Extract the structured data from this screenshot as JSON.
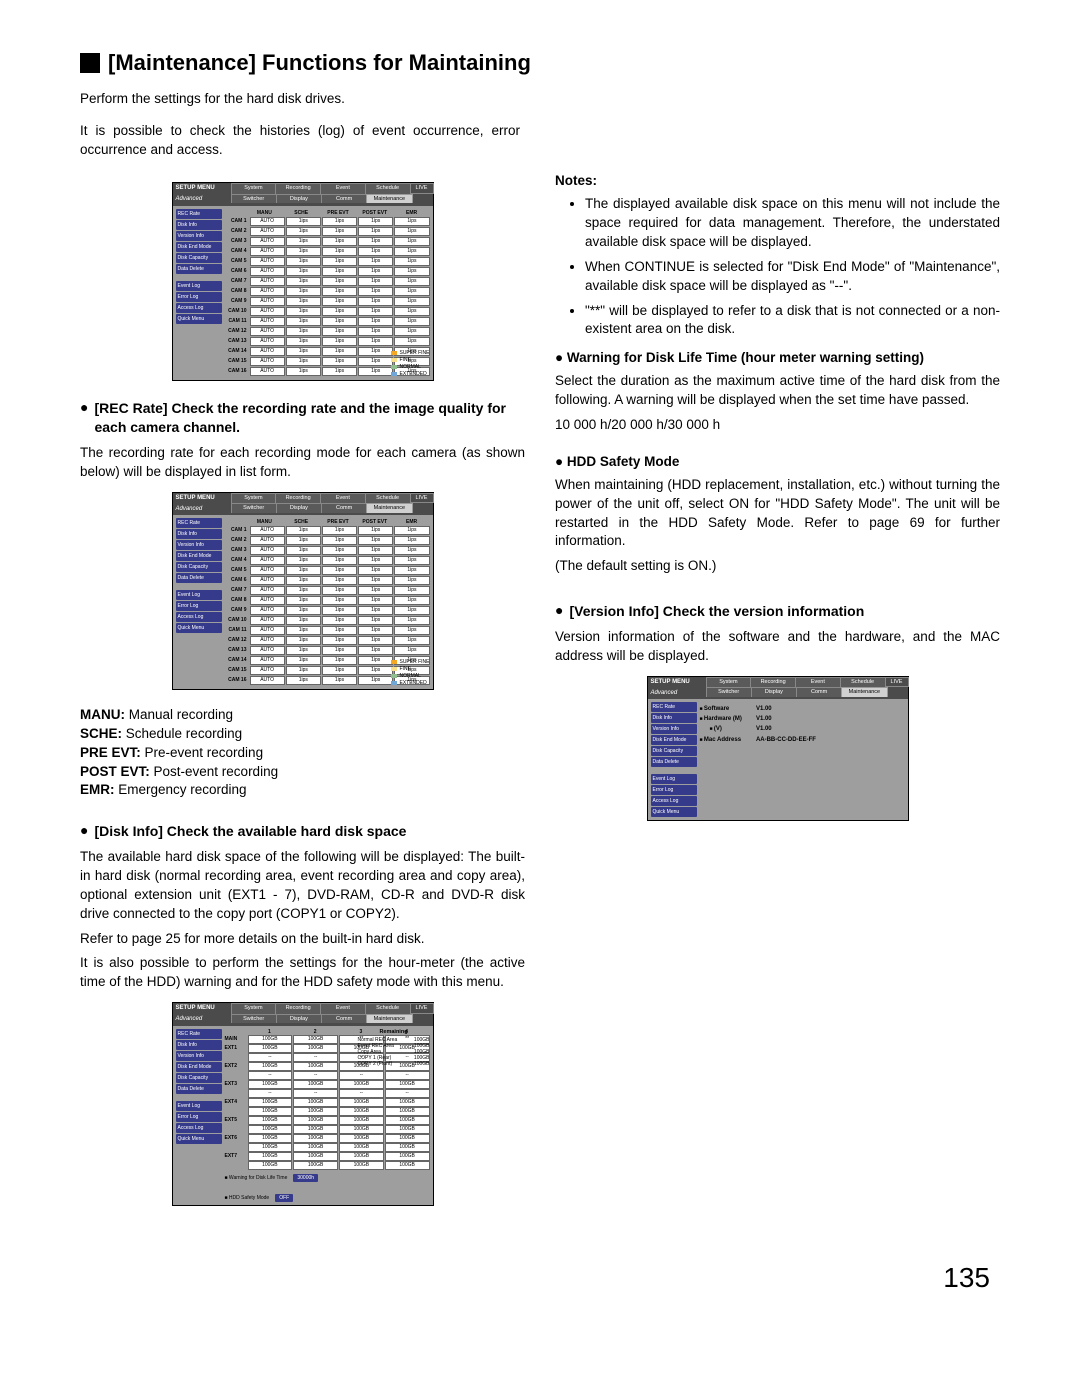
{
  "page": {
    "title": "[Maintenance] Functions for Maintaining",
    "intro1": "Perform the settings for the hard disk drives.",
    "intro2": "It is possible to check the histories (log) of event occurrence, error occurrence and access.",
    "page_num": "135"
  },
  "sec_rec": {
    "heading": "[REC Rate] Check the recording rate and the image quality for each camera channel.",
    "text": "The recording rate for each recording mode for each camera (as shown below) will be displayed in list form."
  },
  "defs": {
    "manu": "MANU:",
    "manu_t": " Manual recording",
    "sche": "SCHE:",
    "sche_t": " Schedule recording",
    "pre": "PRE EVT:",
    "pre_t": " Pre-event recording",
    "post": "POST EVT:",
    "post_t": " Post-event recording",
    "emr": "EMR:",
    "emr_t": " Emergency recording"
  },
  "sec_disk": {
    "heading": "[Disk Info] Check the available hard disk space",
    "text1": "The available hard disk space of the following will be displayed: The built-in hard disk (normal recording area, event recording area and copy area), optional extension unit (EXT1 - 7), DVD-RAM, CD-R and DVD-R disk drive connected to the copy port (COPY1 or COPY2).",
    "text2": "Refer to page 25 for more details on the built-in hard disk.",
    "text3": "It is also possible to perform the settings for the hour-meter (the active time of the HDD) warning and for the HDD safety mode with this menu."
  },
  "notes": {
    "title": "Notes:",
    "n1": "The displayed available disk space on this menu will not include the space required for data management. Therefore, the understated available disk space will be displayed.",
    "n2": "When CONTINUE is selected for \"Disk End Mode\" of \"Maintenance\", available disk space will be displayed as \"--\".",
    "n3": "\"**\" will be displayed to refer to a disk that is not connected or a non-existent area on the disk."
  },
  "sec_warn": {
    "heading": "Warning for Disk Life Time (hour meter warning setting)",
    "text1": "Select the duration as the maximum active time of the hard disk from the following. A warning will be displayed when the set time have passed.",
    "text2": "10 000 h/20 000 h/30 000 h"
  },
  "sec_hdd": {
    "heading": "HDD Safety Mode",
    "text1": "When maintaining (HDD replacement, installation, etc.) without turning the power of the unit off, select ON for \"HDD Safety Mode\". The unit will be restarted in the HDD Safety Mode. Refer to page 69 for further information.",
    "text2": "(The default setting is ON.)"
  },
  "sec_ver": {
    "heading": "[Version Info] Check the version information",
    "text": "Version information of the software and the hardware, and the MAC address will be displayed."
  },
  "panel": {
    "setup": "SETUP MENU",
    "adv": "Advanced",
    "tabs": [
      "System",
      "Recording",
      "Event",
      "Schedule"
    ],
    "subtabs": [
      "Switcher",
      "Display",
      "Comm",
      "Maintenance"
    ],
    "live": "LIVE",
    "side": [
      "REC Rate",
      "Disk Info",
      "Version Info",
      "Disk End Mode",
      "Disk Capacity",
      "Data Delete",
      "",
      "Event Log",
      "Error Log",
      "Access Log",
      "Quick Menu"
    ],
    "cols": [
      "MANU",
      "SCHE",
      "PRE EVT",
      "POST EVT",
      "EMR"
    ],
    "cell_auto": "AUTO",
    "cell_1ips": "1ips",
    "cam_prefix": "CAM",
    "cam_count": 16,
    "legend": [
      "SUPER FINE",
      "FINE",
      "NORMAL",
      "EXTENDED"
    ]
  },
  "disk_panel": {
    "head_nums": [
      "1",
      "2",
      "3",
      "4"
    ],
    "remaining_title": "Remaining",
    "rows": [
      "MAIN",
      "EXT1",
      "EXT2",
      "EXT3",
      "EXT4",
      "EXT5",
      "EXT6",
      "EXT7"
    ],
    "cell_gb": "100GB",
    "cell_star": "**",
    "cell_dash": "--",
    "remaining": [
      [
        "Normal REC Area",
        "100GB"
      ],
      [
        "Event REC Area",
        "100GB"
      ],
      [
        "Copy Area",
        "100GB"
      ],
      [
        "COPY 1 (Rear)",
        "100GB"
      ],
      [
        "COPY 2 (Front)",
        "100GB"
      ]
    ],
    "footer1": "■ Warning for Disk Life Time",
    "footer1v": "30000h",
    "footer2": "■ HDD Safety Mode",
    "footer2v": "OFF"
  },
  "ver_panel": {
    "labels": [
      "Software",
      "Hardware (M)",
      "(V)",
      "Mac Address"
    ],
    "values": [
      "V1.00",
      "V1.00",
      "V1.00",
      "AA-BB-CC-DD-EE-FF"
    ]
  }
}
